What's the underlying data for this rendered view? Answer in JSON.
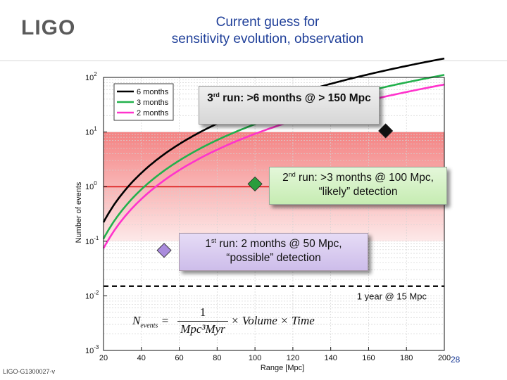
{
  "logo": {
    "text": "LIGO"
  },
  "slide": {
    "title_line1": "Current guess for",
    "title_line2": "sensitivity evolution, observation",
    "doc_id": "LIGO-G1300027-v",
    "page_number": "28"
  },
  "callouts": {
    "run3": {
      "pre": "3",
      "sup": "rd",
      "post": " run: >6 months @ > 150 Mpc"
    },
    "run2": {
      "pre": "2",
      "sup": "nd",
      "post": " run: >3 months @ 100 Mpc,",
      "line2": "“likely” detection"
    },
    "run1": {
      "pre": "1",
      "sup": "st",
      "post": " run: 2 months @ 50 Mpc,",
      "line2": "“possible” detection"
    }
  },
  "formula": {
    "lhs": "N",
    "lhs_sub": "events",
    "numerator": "1",
    "denominator": "Mpc³Myr",
    "rhs": "× Volume × Time"
  },
  "colors": {
    "title": "#1f3f99",
    "six_months": "#000000",
    "three_months": "#22b14c",
    "two_months": "#ff33cc",
    "band": "#f26c6c",
    "run1_box": "#d9ccf0",
    "run2_box": "#d4f2c4",
    "run3_box": "#e8e8e8"
  },
  "chart_data": {
    "type": "line",
    "xlabel": "Range [Mpc]",
    "ylabel": "Number of events",
    "xlim": [
      20,
      200
    ],
    "ylim_log10": [
      -3,
      2
    ],
    "yscale": "log",
    "grid": true,
    "x_ticks": [
      "20",
      "40",
      "60",
      "80",
      "100",
      "120",
      "140",
      "160",
      "180",
      "200"
    ],
    "y_ticks": [
      {
        "base": "10",
        "exp": "-3"
      },
      {
        "base": "10",
        "exp": "-2"
      },
      {
        "base": "10",
        "exp": "-1"
      },
      {
        "base": "10",
        "exp": "0"
      },
      {
        "base": "10",
        "exp": "1"
      },
      {
        "base": "10",
        "exp": "2"
      }
    ],
    "legend_position": "top-left",
    "series": [
      {
        "name": "6 months",
        "color": "#000000",
        "coef": 2.78e-05,
        "exponent": 3
      },
      {
        "name": "3 months",
        "color": "#22b14c",
        "coef": 1.39e-05,
        "exponent": 3
      },
      {
        "name": "2 months",
        "color": "#ff33cc",
        "coef": 9.26e-06,
        "exponent": 3
      }
    ],
    "band": {
      "y_low": 0.1,
      "y_high": 10,
      "color": "#f26c6c"
    },
    "reference_line": {
      "y": 1,
      "color": "#e03030"
    },
    "dashed_line": {
      "y": 0.015,
      "label": "1 year @ 15 Mpc"
    },
    "markers": [
      {
        "name": "run1",
        "x": 52,
        "y": 0.068,
        "color": "#a98bdc"
      },
      {
        "name": "run2",
        "x": 100,
        "y": 1.12,
        "color": "#2a9d3c"
      },
      {
        "name": "run3",
        "x": 169,
        "y": 10.5,
        "color": "#111111"
      }
    ]
  }
}
